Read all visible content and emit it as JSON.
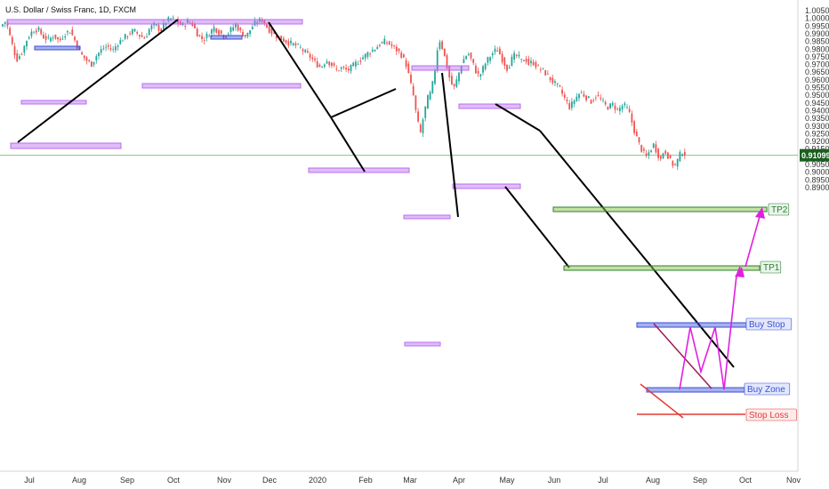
{
  "chart_data": {
    "type": "candlestick",
    "title": "U.S. Dollar / Swiss Franc, 1D, FXCM",
    "y_ticks": [
      "1.00500",
      "1.00000",
      "0.99500",
      "0.99000",
      "0.98500",
      "0.98000",
      "0.97500",
      "0.97000",
      "0.96500",
      "0.96000",
      "0.95500",
      "0.95000",
      "0.94500",
      "0.94000",
      "0.93500",
      "0.93000",
      "0.92500",
      "0.92000",
      "0.91500",
      "0.91000",
      "0.90500",
      "0.90000",
      "0.89500",
      "0.89000"
    ],
    "x_ticks": [
      "Jul",
      "Aug",
      "Sep",
      "Oct",
      "Nov",
      "Dec",
      "2020",
      "Feb",
      "Mar",
      "Apr",
      "May",
      "Jun",
      "Jul",
      "Aug",
      "Sep",
      "Oct",
      "Nov"
    ],
    "ylim": [
      0.887,
      1.006
    ],
    "current_price": "0.91099",
    "current_price_value": 0.91099,
    "annotations": {
      "tp2": "TP2",
      "tp1": "TP1",
      "buy_stop": "Buy Stop",
      "buy_zone": "Buy Zone",
      "stop_loss": "Stop Loss"
    },
    "colors": {
      "up": "#26a69a",
      "down": "#ef5350",
      "purple": "#b96cf0",
      "blue": "#3a4fd8",
      "green_level": "#2e7d32",
      "red_level": "#e53935",
      "magenta": "#e01fe0",
      "trend": "#000000"
    }
  }
}
